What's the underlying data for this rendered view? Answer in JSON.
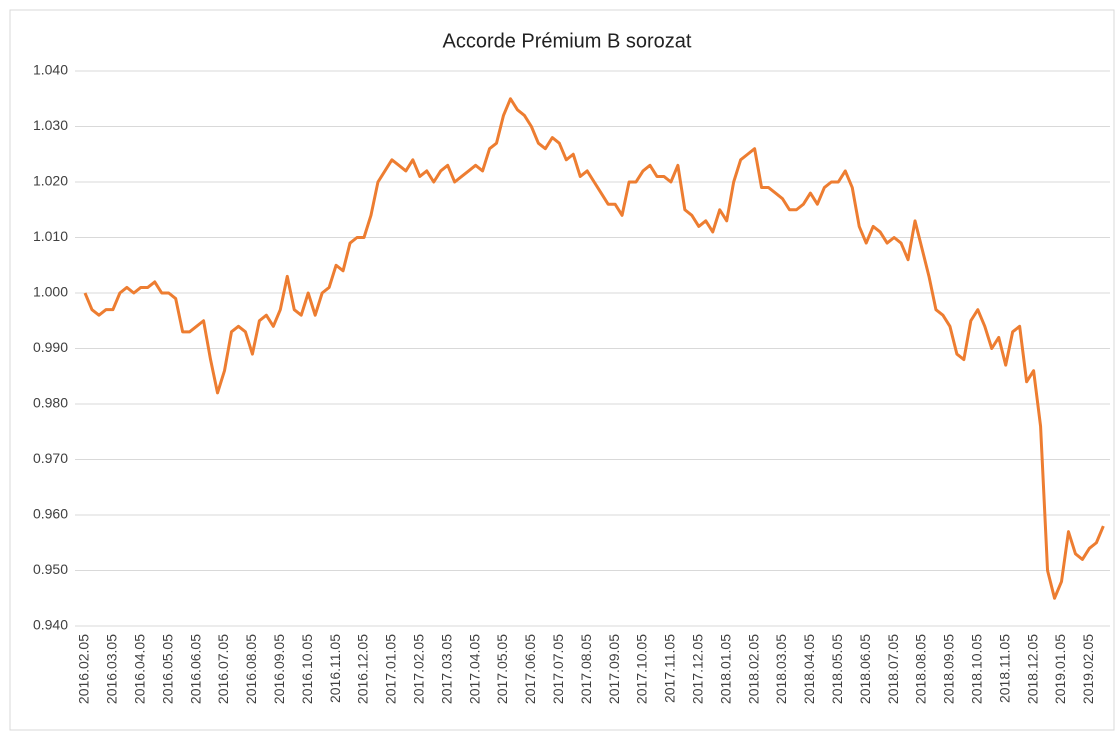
{
  "chart_data": {
    "type": "line",
    "title": "Accorde Prémium B sorozat",
    "categories": [
      "2016.02.05",
      null,
      null,
      null,
      "2016.03.05",
      null,
      null,
      null,
      "2016.04.05",
      null,
      null,
      null,
      "2016.05.05",
      null,
      null,
      null,
      "2016.06.05",
      null,
      null,
      null,
      "2016.07.05",
      null,
      null,
      null,
      "2016.08.05",
      null,
      null,
      null,
      "2016.09.05",
      null,
      null,
      null,
      "2016.10.05",
      null,
      null,
      null,
      "2016.11.05",
      null,
      null,
      null,
      "2016.12.05",
      null,
      null,
      null,
      "2017.01.05",
      null,
      null,
      null,
      "2017.02.05",
      null,
      null,
      null,
      "2017.03.05",
      null,
      null,
      null,
      "2017.04.05",
      null,
      null,
      null,
      "2017.05.05",
      null,
      null,
      null,
      "2017.06.05",
      null,
      null,
      null,
      "2017.07.05",
      null,
      null,
      null,
      "2017.08.05",
      null,
      null,
      null,
      "2017.09.05",
      null,
      null,
      null,
      "2017.10.05",
      null,
      null,
      null,
      "2017.11.05",
      null,
      null,
      null,
      "2017.12.05",
      null,
      null,
      null,
      "2018.01.05",
      null,
      null,
      null,
      "2018.02.05",
      null,
      null,
      null,
      "2018.03.05",
      null,
      null,
      null,
      "2018.04.05",
      null,
      null,
      null,
      "2018.05.05",
      null,
      null,
      null,
      "2018.06.05",
      null,
      null,
      null,
      "2018.07.05",
      null,
      null,
      null,
      "2018.08.05",
      null,
      null,
      null,
      "2018.09.05",
      null,
      null,
      null,
      "2018.10.05",
      null,
      null,
      null,
      "2018.11.05",
      null,
      null,
      null,
      "2018.12.05",
      null,
      null,
      null,
      "2019.01.05",
      null,
      null,
      null,
      "2019.02.05",
      null,
      null
    ],
    "series": [
      {
        "name": "Accorde Prémium B sorozat",
        "color": "#ed7d31",
        "values": [
          1.0,
          0.997,
          0.996,
          0.997,
          0.997,
          1.0,
          1.001,
          1.0,
          1.001,
          1.001,
          1.002,
          1.0,
          1.0,
          0.999,
          0.993,
          0.993,
          0.994,
          0.995,
          0.988,
          0.982,
          0.986,
          0.993,
          0.994,
          0.993,
          0.989,
          0.995,
          0.996,
          0.994,
          0.997,
          1.003,
          0.997,
          0.996,
          1.0,
          0.996,
          1.0,
          1.001,
          1.005,
          1.004,
          1.009,
          1.01,
          1.01,
          1.014,
          1.02,
          1.022,
          1.024,
          1.023,
          1.022,
          1.024,
          1.021,
          1.022,
          1.02,
          1.022,
          1.023,
          1.02,
          1.021,
          1.022,
          1.023,
          1.022,
          1.026,
          1.027,
          1.032,
          1.035,
          1.033,
          1.032,
          1.03,
          1.027,
          1.026,
          1.028,
          1.027,
          1.024,
          1.025,
          1.021,
          1.022,
          1.02,
          1.018,
          1.016,
          1.016,
          1.014,
          1.02,
          1.02,
          1.022,
          1.023,
          1.021,
          1.021,
          1.02,
          1.023,
          1.015,
          1.014,
          1.012,
          1.013,
          1.011,
          1.015,
          1.013,
          1.02,
          1.024,
          1.025,
          1.026,
          1.019,
          1.019,
          1.018,
          1.017,
          1.015,
          1.015,
          1.016,
          1.018,
          1.016,
          1.019,
          1.02,
          1.02,
          1.022,
          1.019,
          1.012,
          1.009,
          1.012,
          1.011,
          1.009,
          1.01,
          1.009,
          1.006,
          1.013,
          1.008,
          1.003,
          0.997,
          0.996,
          0.994,
          0.989,
          0.988,
          0.995,
          0.997,
          0.994,
          0.99,
          0.992,
          0.987,
          0.993,
          0.994,
          0.984,
          0.986,
          0.976,
          0.95,
          0.945,
          0.948,
          0.957,
          0.953,
          0.952,
          0.954,
          0.955,
          0.958
        ]
      }
    ],
    "ylim": [
      0.94,
      1.04
    ],
    "yticks": [
      {
        "value": 0.94,
        "label": "0.940"
      },
      {
        "value": 0.95,
        "label": "0.950"
      },
      {
        "value": 0.96,
        "label": "0.960"
      },
      {
        "value": 0.97,
        "label": "0.970"
      },
      {
        "value": 0.98,
        "label": "0.980"
      },
      {
        "value": 0.99,
        "label": "0.990"
      },
      {
        "value": 1.0,
        "label": "1.000"
      },
      {
        "value": 1.01,
        "label": "1.010"
      },
      {
        "value": 1.02,
        "label": "1.020"
      },
      {
        "value": 1.03,
        "label": "1.030"
      },
      {
        "value": 1.04,
        "label": "1.040"
      }
    ],
    "grid": true
  }
}
